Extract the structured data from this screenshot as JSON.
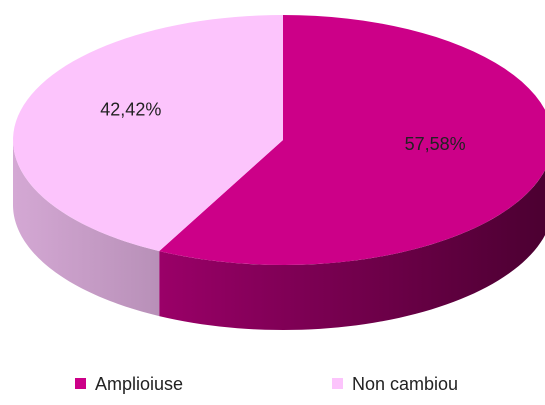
{
  "chart_data": {
    "type": "pie3d",
    "categories": [
      "Amplioiuse",
      "Non cambiou"
    ],
    "values": [
      57.58,
      42.42
    ],
    "value_labels": [
      "57,58%",
      "42,42%"
    ],
    "colors": [
      "#cc0088",
      "#fcc4fc"
    ],
    "legend": "bottom"
  }
}
